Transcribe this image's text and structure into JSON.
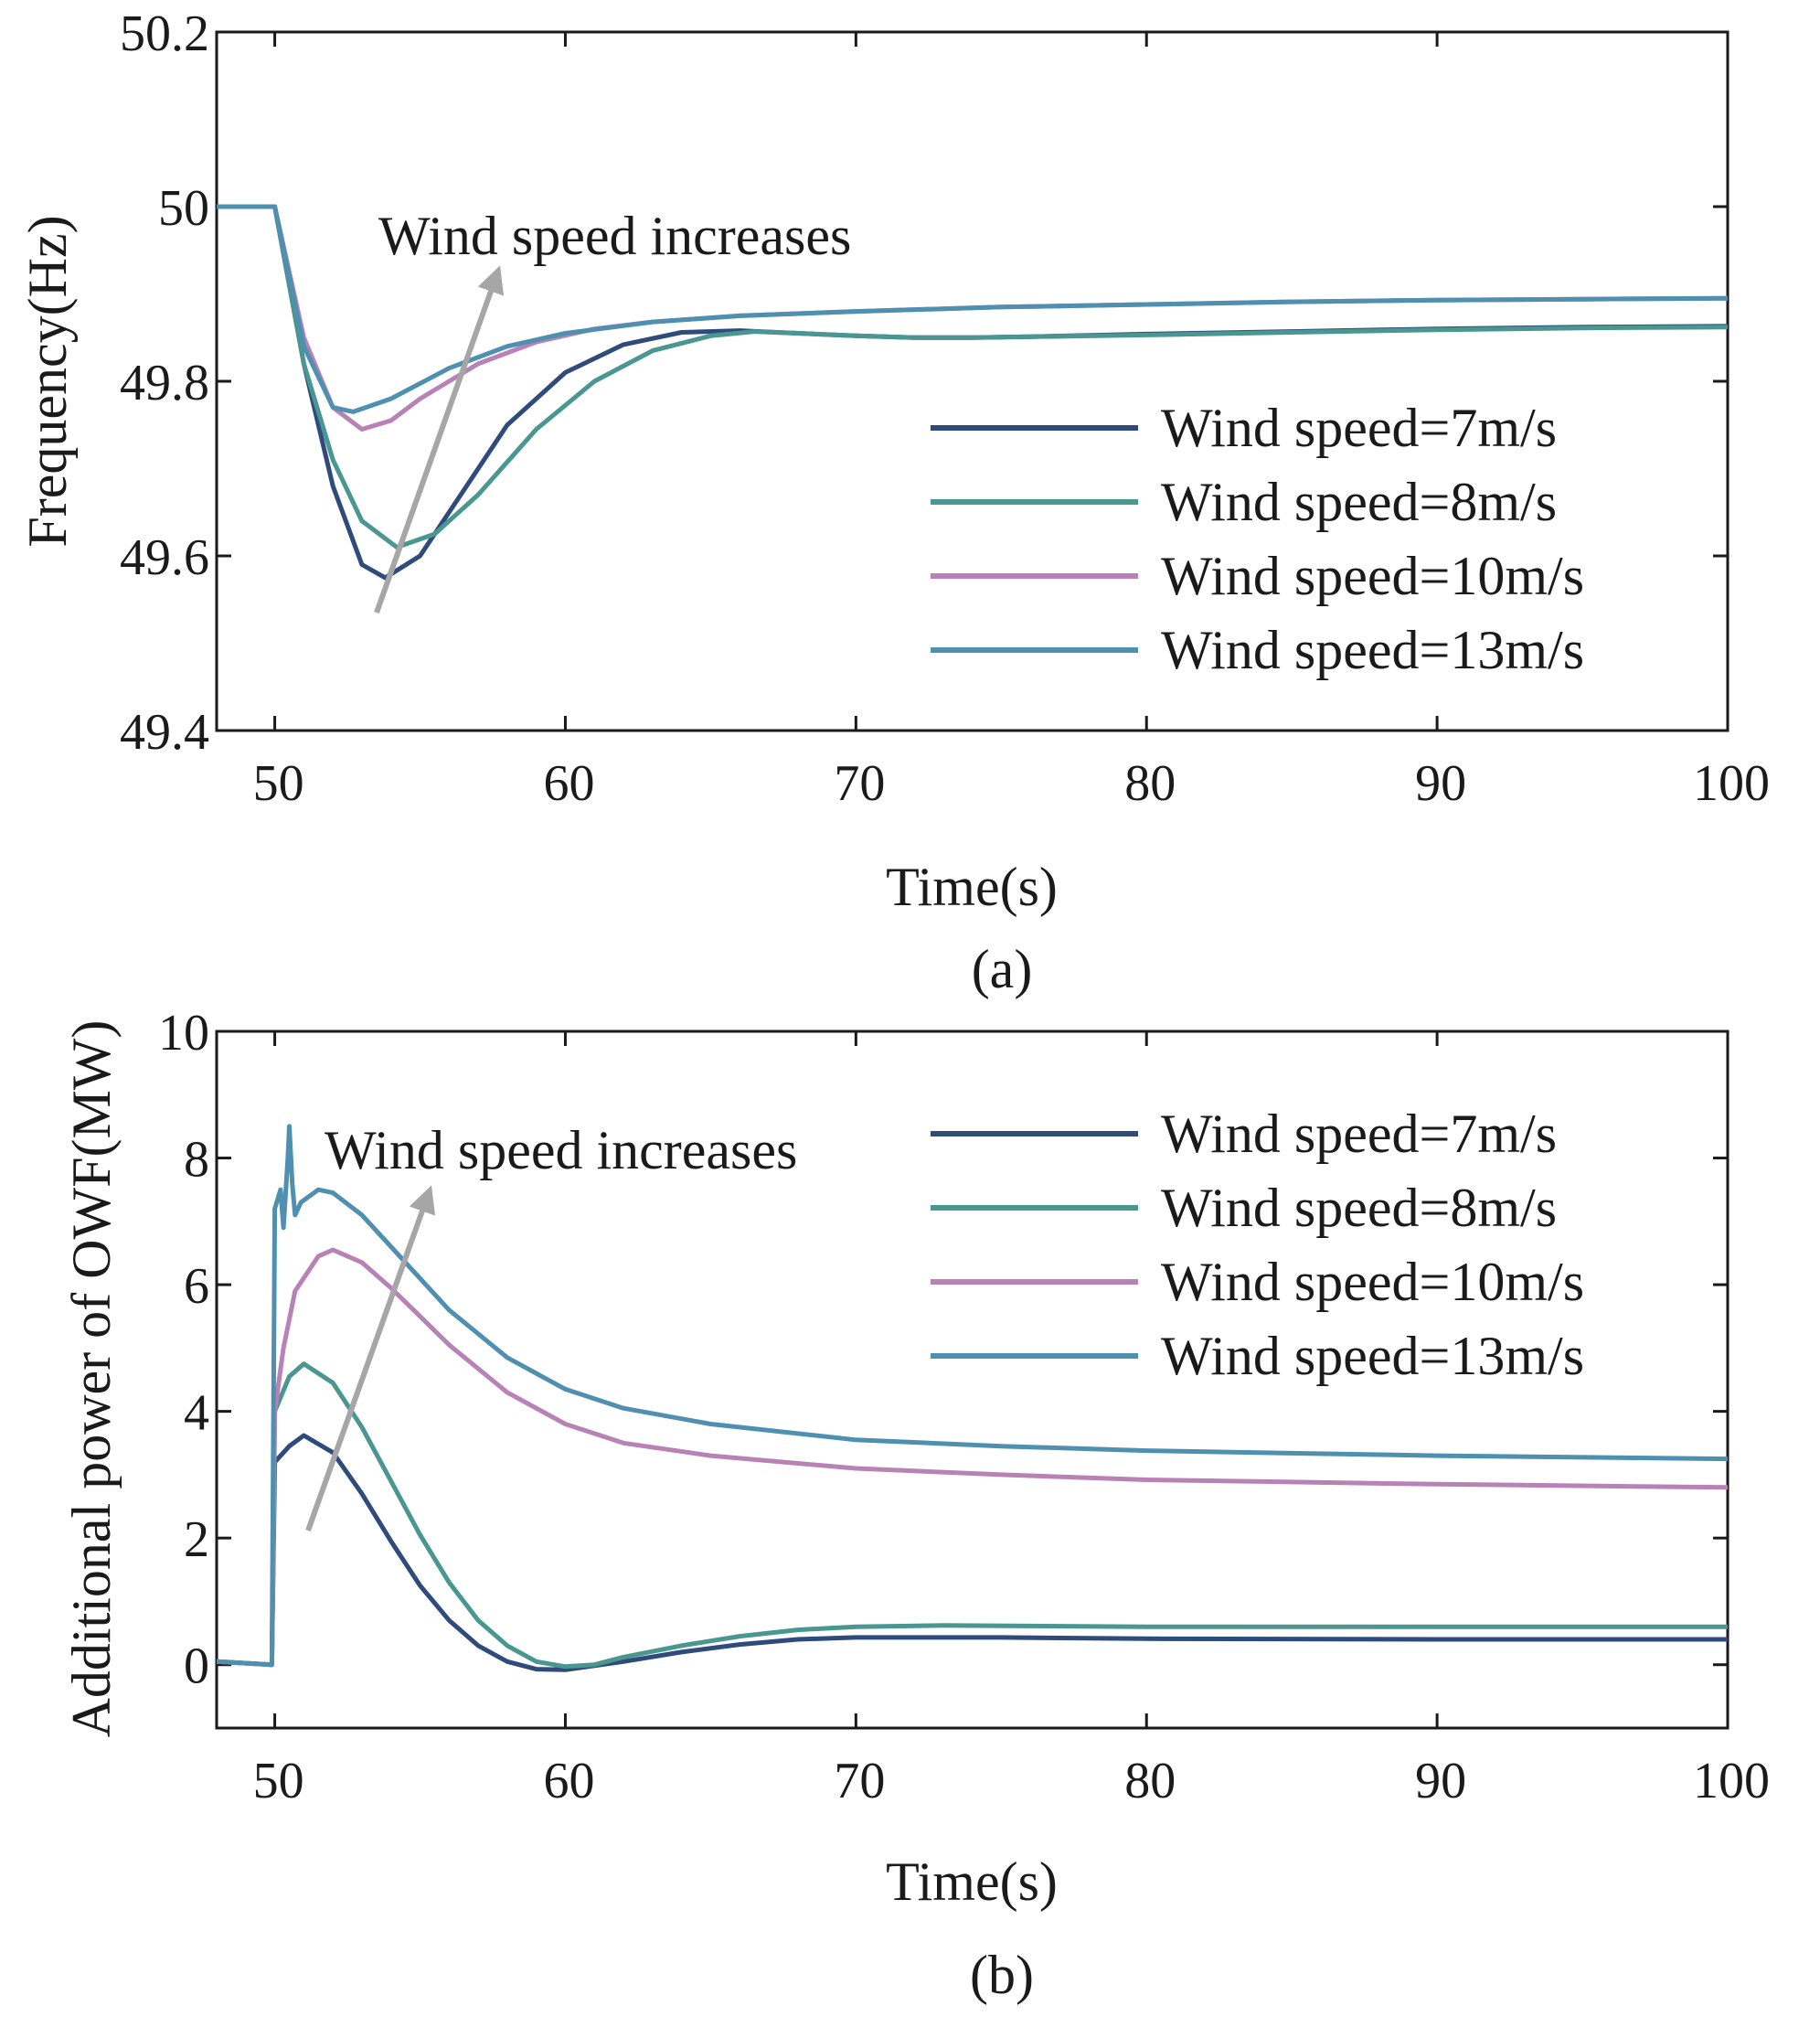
{
  "chart_data": [
    {
      "id": "a",
      "type": "line",
      "caption": "(a)",
      "xlabel": "Time(s)",
      "ylabel": "Frequency(Hz)",
      "xlim": [
        48,
        100
      ],
      "ylim": [
        49.4,
        50.2
      ],
      "xticks": [
        50,
        60,
        70,
        80,
        90,
        100
      ],
      "yticks": [
        49.4,
        49.6,
        49.8,
        50,
        50.2
      ],
      "ytick_labels": [
        "49.4",
        "49.6",
        "49.8",
        "50",
        "50.2"
      ],
      "legend_location": "right",
      "annotation": {
        "text": "Wind speed increases"
      },
      "series": [
        {
          "name": "Wind speed=7m/s",
          "color": "#2f4b7c",
          "points": [
            [
              48,
              50
            ],
            [
              50,
              50
            ],
            [
              51,
              49.82
            ],
            [
              52,
              49.68
            ],
            [
              53,
              49.59
            ],
            [
              53.8,
              49.575
            ],
            [
              55,
              49.6
            ],
            [
              56,
              49.65
            ],
            [
              58,
              49.75
            ],
            [
              60,
              49.81
            ],
            [
              62,
              49.842
            ],
            [
              64,
              49.856
            ],
            [
              66,
              49.858
            ],
            [
              68,
              49.855
            ],
            [
              70,
              49.852
            ],
            [
              72,
              49.85
            ],
            [
              74,
              49.85
            ],
            [
              76,
              49.851
            ],
            [
              80,
              49.854
            ],
            [
              85,
              49.857
            ],
            [
              90,
              49.86
            ],
            [
              95,
              49.862
            ],
            [
              100,
              49.863
            ]
          ]
        },
        {
          "name": "Wind speed=8m/s",
          "color": "#4a9690",
          "points": [
            [
              48,
              50
            ],
            [
              50,
              50
            ],
            [
              51,
              49.82
            ],
            [
              52,
              49.71
            ],
            [
              53,
              49.64
            ],
            [
              54.2,
              49.61
            ],
            [
              55.5,
              49.625
            ],
            [
              57,
              49.67
            ],
            [
              59,
              49.745
            ],
            [
              61,
              49.8
            ],
            [
              63,
              49.835
            ],
            [
              65,
              49.852
            ],
            [
              66.5,
              49.857
            ],
            [
              68,
              49.855
            ],
            [
              70,
              49.852
            ],
            [
              72,
              49.85
            ],
            [
              74,
              49.85
            ],
            [
              76,
              49.851
            ],
            [
              80,
              49.853
            ],
            [
              85,
              49.856
            ],
            [
              90,
              49.859
            ],
            [
              95,
              49.861
            ],
            [
              100,
              49.862
            ]
          ]
        },
        {
          "name": "Wind speed=10m/s",
          "color": "#b882b6",
          "points": [
            [
              48,
              50
            ],
            [
              50,
              50
            ],
            [
              51,
              49.85
            ],
            [
              52,
              49.77
            ],
            [
              53,
              49.745
            ],
            [
              54,
              49.755
            ],
            [
              55,
              49.78
            ],
            [
              57,
              49.82
            ],
            [
              59,
              49.845
            ],
            [
              61,
              49.86
            ],
            [
              63,
              49.868
            ],
            [
              66,
              49.875
            ],
            [
              70,
              49.88
            ],
            [
              75,
              49.885
            ],
            [
              80,
              49.888
            ],
            [
              85,
              49.891
            ],
            [
              90,
              49.893
            ],
            [
              95,
              49.894
            ],
            [
              100,
              49.895
            ]
          ]
        },
        {
          "name": "Wind speed=13m/s",
          "color": "#4f8fb0",
          "points": [
            [
              48,
              50
            ],
            [
              50,
              50
            ],
            [
              51,
              49.84
            ],
            [
              52,
              49.77
            ],
            [
              52.7,
              49.765
            ],
            [
              54,
              49.78
            ],
            [
              56,
              49.815
            ],
            [
              58,
              49.84
            ],
            [
              60,
              49.855
            ],
            [
              63,
              49.868
            ],
            [
              66,
              49.875
            ],
            [
              70,
              49.88
            ],
            [
              75,
              49.885
            ],
            [
              80,
              49.888
            ],
            [
              85,
              49.891
            ],
            [
              90,
              49.893
            ],
            [
              95,
              49.894
            ],
            [
              100,
              49.895
            ]
          ]
        }
      ]
    },
    {
      "id": "b",
      "type": "line",
      "caption": "(b)",
      "xlabel": "Time(s)",
      "ylabel": "Additional power of OWF(MW)",
      "xlim": [
        48,
        100
      ],
      "ylim": [
        -1,
        10
      ],
      "xticks": [
        50,
        60,
        70,
        80,
        90,
        100
      ],
      "yticks": [
        0,
        2,
        4,
        6,
        8,
        10
      ],
      "ytick_labels": [
        "0",
        "2",
        "4",
        "6",
        "8",
        "10"
      ],
      "legend_location": "top-right",
      "annotation": {
        "text": "Wind speed increases"
      },
      "series": [
        {
          "name": "Wind speed=7m/s",
          "color": "#2f4b7c",
          "points": [
            [
              48,
              0.05
            ],
            [
              49.9,
              0
            ],
            [
              50,
              3.2
            ],
            [
              50.5,
              3.45
            ],
            [
              51,
              3.62
            ],
            [
              52,
              3.35
            ],
            [
              53,
              2.7
            ],
            [
              54,
              1.95
            ],
            [
              55,
              1.25
            ],
            [
              56,
              0.7
            ],
            [
              57,
              0.3
            ],
            [
              58,
              0.05
            ],
            [
              59,
              -0.07
            ],
            [
              60,
              -0.08
            ],
            [
              62,
              0.05
            ],
            [
              64,
              0.2
            ],
            [
              66,
              0.32
            ],
            [
              68,
              0.4
            ],
            [
              70,
              0.43
            ],
            [
              75,
              0.43
            ],
            [
              80,
              0.41
            ],
            [
              90,
              0.4
            ],
            [
              100,
              0.4
            ]
          ]
        },
        {
          "name": "Wind speed=8m/s",
          "color": "#4a9690",
          "points": [
            [
              48,
              0.05
            ],
            [
              49.9,
              0
            ],
            [
              50,
              4.0
            ],
            [
              50.5,
              4.55
            ],
            [
              51,
              4.75
            ],
            [
              52,
              4.45
            ],
            [
              53,
              3.75
            ],
            [
              54,
              2.9
            ],
            [
              55,
              2.05
            ],
            [
              56,
              1.3
            ],
            [
              57,
              0.7
            ],
            [
              58,
              0.3
            ],
            [
              59,
              0.05
            ],
            [
              60,
              -0.03
            ],
            [
              61,
              0
            ],
            [
              62,
              0.12
            ],
            [
              64,
              0.3
            ],
            [
              66,
              0.45
            ],
            [
              68,
              0.55
            ],
            [
              70,
              0.6
            ],
            [
              73,
              0.62
            ],
            [
              80,
              0.6
            ],
            [
              90,
              0.6
            ],
            [
              100,
              0.6
            ]
          ]
        },
        {
          "name": "Wind speed=10m/s",
          "color": "#b882b6",
          "points": [
            [
              48,
              0.05
            ],
            [
              49.9,
              0
            ],
            [
              50,
              4.0
            ],
            [
              50.3,
              5.0
            ],
            [
              50.7,
              5.9
            ],
            [
              51.5,
              6.45
            ],
            [
              52,
              6.55
            ],
            [
              53,
              6.35
            ],
            [
              54,
              5.95
            ],
            [
              55,
              5.5
            ],
            [
              56,
              5.05
            ],
            [
              58,
              4.3
            ],
            [
              60,
              3.8
            ],
            [
              62,
              3.5
            ],
            [
              65,
              3.3
            ],
            [
              70,
              3.1
            ],
            [
              75,
              3.0
            ],
            [
              80,
              2.92
            ],
            [
              90,
              2.85
            ],
            [
              100,
              2.8
            ]
          ]
        },
        {
          "name": "Wind speed=13m/s",
          "color": "#4f8fb0",
          "points": [
            [
              48,
              0.05
            ],
            [
              49.9,
              0
            ],
            [
              50,
              7.2
            ],
            [
              50.2,
              7.5
            ],
            [
              50.3,
              6.9
            ],
            [
              50.45,
              8.0
            ],
            [
              50.5,
              8.5
            ],
            [
              50.6,
              7.6
            ],
            [
              50.7,
              7.1
            ],
            [
              50.9,
              7.3
            ],
            [
              51.5,
              7.5
            ],
            [
              52,
              7.45
            ],
            [
              53,
              7.1
            ],
            [
              54,
              6.6
            ],
            [
              55,
              6.1
            ],
            [
              56,
              5.6
            ],
            [
              58,
              4.85
            ],
            [
              60,
              4.35
            ],
            [
              62,
              4.05
            ],
            [
              65,
              3.8
            ],
            [
              70,
              3.55
            ],
            [
              75,
              3.45
            ],
            [
              80,
              3.38
            ],
            [
              90,
              3.3
            ],
            [
              100,
              3.25
            ]
          ]
        }
      ]
    }
  ]
}
